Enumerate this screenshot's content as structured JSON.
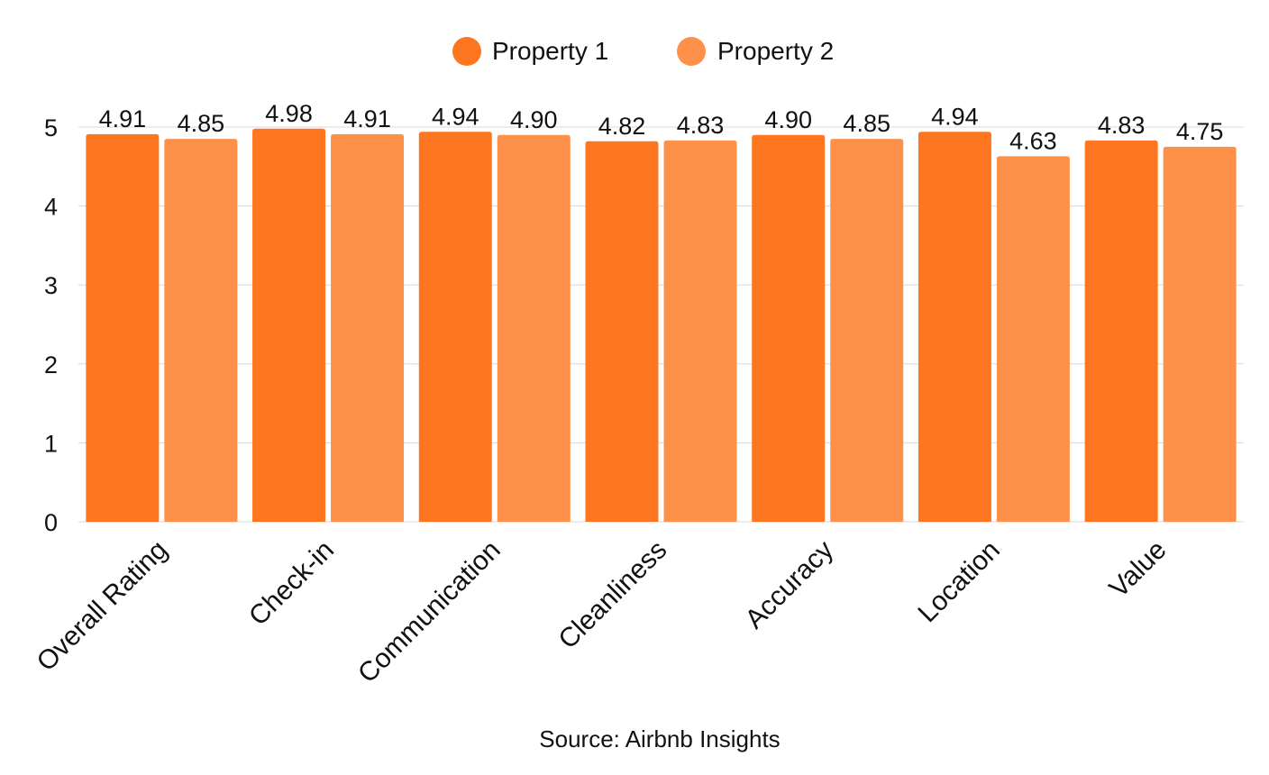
{
  "chart_data": {
    "type": "bar",
    "categories": [
      "Overall Rating",
      "Check-in",
      "Communication",
      "Cleanliness",
      "Accuracy",
      "Location",
      "Value"
    ],
    "series": [
      {
        "name": "Property 1",
        "color": "#fe7720",
        "values": [
          4.91,
          4.98,
          4.94,
          4.82,
          4.9,
          4.94,
          4.83
        ],
        "labels": [
          "4.91",
          "4.98",
          "4.94",
          "4.82",
          "4.90",
          "4.94",
          "4.83"
        ]
      },
      {
        "name": "Property 2",
        "color": "#fe914a",
        "values": [
          4.85,
          4.91,
          4.9,
          4.83,
          4.85,
          4.63,
          4.75
        ],
        "labels": [
          "4.85",
          "4.91",
          "4.90",
          "4.83",
          "4.85",
          "4.63",
          "4.75"
        ]
      }
    ],
    "ylim": [
      0,
      5
    ],
    "yticks": [
      "0",
      "1",
      "2",
      "3",
      "4",
      "5"
    ],
    "grid": true,
    "legend": "top-center",
    "source": "Source: Airbnb Insights"
  }
}
